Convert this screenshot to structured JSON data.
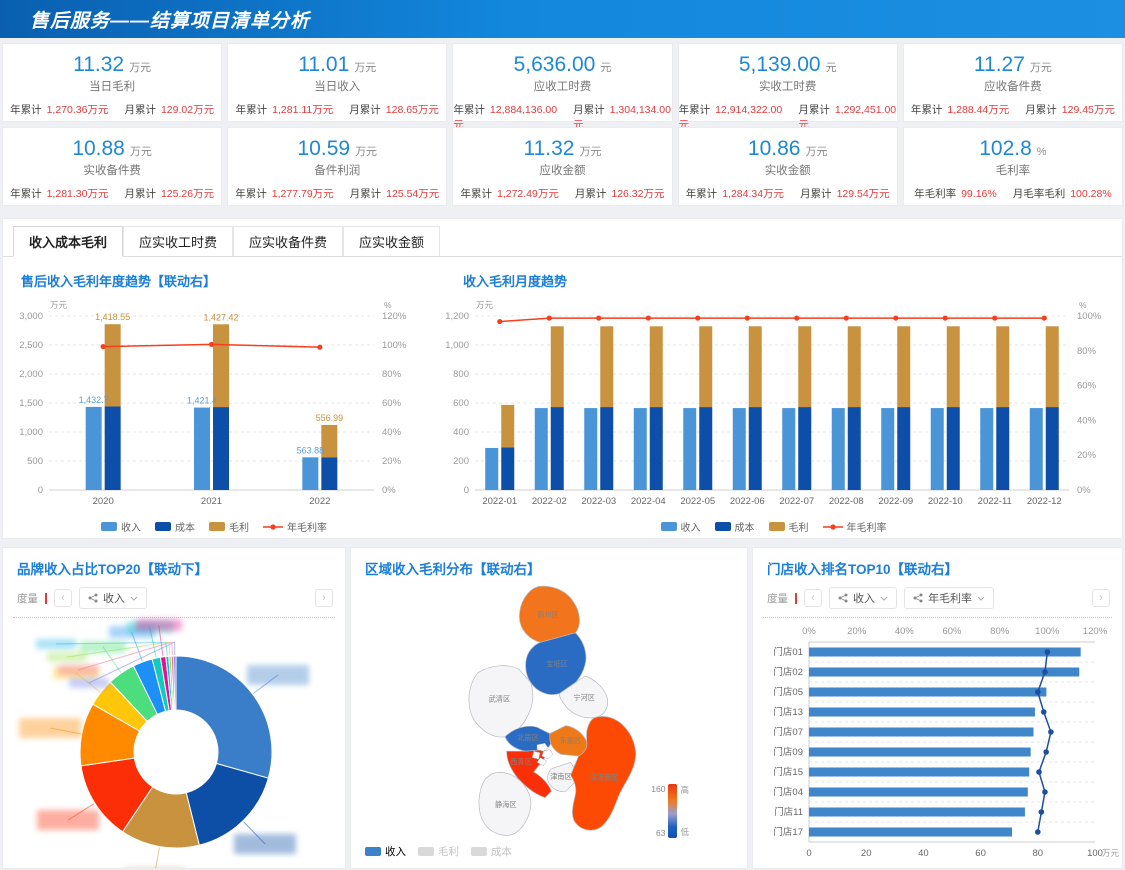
{
  "header": {
    "title": "售后服务——结算项目清单分析"
  },
  "kpis": [
    {
      "value": "11.32",
      "unit": "万元",
      "label": "当日毛利",
      "s1l": "年累计",
      "s1v": "1,270.36万元",
      "s2l": "月累计",
      "s2v": "129.02万元"
    },
    {
      "value": "11.01",
      "unit": "万元",
      "label": "当日收入",
      "s1l": "年累计",
      "s1v": "1,281.11万元",
      "s2l": "月累计",
      "s2v": "128.65万元"
    },
    {
      "value": "5,636.00",
      "unit": "元",
      "label": "应收工时费",
      "s1l": "年累计",
      "s1v": "12,884,136.00元",
      "s2l": "月累计",
      "s2v": "1,304,134.00元"
    },
    {
      "value": "5,139.00",
      "unit": "元",
      "label": "实收工时费",
      "s1l": "年累计",
      "s1v": "12,914,322.00元",
      "s2l": "月累计",
      "s2v": "1,292,451.00元"
    },
    {
      "value": "11.27",
      "unit": "万元",
      "label": "应收备件费",
      "s1l": "年累计",
      "s1v": "1,288.44万元",
      "s2l": "月累计",
      "s2v": "129.45万元"
    },
    {
      "value": "10.88",
      "unit": "万元",
      "label": "实收备件费",
      "s1l": "年累计",
      "s1v": "1,281.30万元",
      "s2l": "月累计",
      "s2v": "125.26万元"
    },
    {
      "value": "10.59",
      "unit": "万元",
      "label": "备件利润",
      "s1l": "年累计",
      "s1v": "1,277.79万元",
      "s2l": "月累计",
      "s2v": "125.54万元"
    },
    {
      "value": "11.32",
      "unit": "万元",
      "label": "应收金额",
      "s1l": "年累计",
      "s1v": "1,272.49万元",
      "s2l": "月累计",
      "s2v": "126.32万元"
    },
    {
      "value": "10.86",
      "unit": "万元",
      "label": "实收金额",
      "s1l": "年累计",
      "s1v": "1,284.34万元",
      "s2l": "月累计",
      "s2v": "129.54万元"
    },
    {
      "value": "102.8",
      "unit": "%",
      "label": "毛利率",
      "s1l": "年毛利率",
      "s1v": "99.16%",
      "s2l": "月毛率毛利",
      "s2v": "100.28%"
    }
  ],
  "tabs": {
    "items": [
      "收入成本毛利",
      "应实收工时费",
      "应实收备件费",
      "应实收金额"
    ],
    "active": 0
  },
  "yearly": {
    "title": "售后收入毛利年度趋势【联动右】"
  },
  "monthly": {
    "title": "收入毛利月度趋势"
  },
  "brand": {
    "title": "品牌收入占比TOP20【联动下】",
    "measure_label": "度量",
    "dropdowns": [
      "收入"
    ]
  },
  "region": {
    "title": "区域收入毛利分布【联动右】",
    "legend": [
      {
        "label": "收入",
        "color": "#3c82c8",
        "active": true
      },
      {
        "label": "毛利",
        "color": "#d9d9d9",
        "active": false
      },
      {
        "label": "成本",
        "color": "#d9d9d9",
        "active": false
      }
    ],
    "scale": {
      "max": "160",
      "min": "63",
      "high": "高",
      "low": "低"
    }
  },
  "store": {
    "title": "门店收入排名TOP10【联动右】",
    "measure_label": "度量",
    "dropdowns": [
      "收入",
      "年毛利率"
    ]
  },
  "chart_data": [
    {
      "id": "yearly_trend",
      "type": "bar+line",
      "title": "售后收入毛利年度趋势【联动右】",
      "unit_left": "万元",
      "unit_right": "%",
      "categories": [
        "2020",
        "2021",
        "2022"
      ],
      "series": [
        {
          "name": "收入",
          "color": "#4a94d8",
          "values": [
            1432.7,
            1421.4,
            563.88
          ]
        },
        {
          "name": "成本",
          "color": "#0d4fa8",
          "values": [
            1440,
            1430,
            565
          ]
        },
        {
          "name": "毛利",
          "color": "#c8923f",
          "values": [
            1418.55,
            1427.42,
            556.99
          ],
          "stacked_on": "成本"
        }
      ],
      "line": {
        "name": "年毛利率",
        "color": "#f53f1e",
        "values": [
          98.9,
          100.4,
          98.5
        ]
      },
      "bar_labels": {
        "income": [
          "1,432.7",
          "1,421.4",
          "563.88"
        ],
        "gross": [
          "1,418.55",
          "1,427.42",
          "556.99"
        ]
      },
      "ylim_left": [
        0,
        3000
      ],
      "left_step": 500,
      "ylim_right": [
        0,
        120
      ],
      "right_step": 20,
      "legend": [
        {
          "label": "收入",
          "color": "#4a94d8"
        },
        {
          "label": "成本",
          "color": "#0d4fa8"
        },
        {
          "label": "毛利",
          "color": "#c8923f"
        },
        {
          "label": "年毛利率",
          "color": "#f53f1e",
          "type": "line"
        }
      ]
    },
    {
      "id": "monthly_trend",
      "type": "bar+line",
      "title": "收入毛利月度趋势",
      "unit_left": "万元",
      "unit_right": "%",
      "categories": [
        "2022-01",
        "2022-02",
        "2022-03",
        "2022-04",
        "2022-05",
        "2022-06",
        "2022-07",
        "2022-08",
        "2022-09",
        "2022-10",
        "2022-11",
        "2022-12"
      ],
      "series": [
        {
          "name": "收入",
          "color": "#4a94d8",
          "values": [
            290,
            565,
            565,
            565,
            565,
            565,
            565,
            565,
            565,
            565,
            565,
            565
          ]
        },
        {
          "name": "成本",
          "color": "#0d4fa8",
          "values": [
            293,
            572,
            572,
            572,
            572,
            572,
            572,
            572,
            572,
            572,
            572,
            572
          ]
        },
        {
          "name": "毛利",
          "color": "#c8923f",
          "values": [
            294,
            557,
            557,
            557,
            557,
            557,
            557,
            557,
            557,
            557,
            557,
            557
          ],
          "stacked_on": "成本"
        }
      ],
      "line": {
        "name": "年毛利率",
        "color": "#f53f1e",
        "values": [
          96.8,
          98.8,
          98.8,
          98.8,
          98.8,
          98.8,
          98.8,
          98.8,
          98.8,
          98.8,
          98.8,
          98.8
        ]
      },
      "ylim_left": [
        0,
        1200
      ],
      "left_step": 200,
      "ylim_right": [
        0,
        100
      ],
      "right_step": 20,
      "legend": [
        {
          "label": "收入",
          "color": "#4a94d8"
        },
        {
          "label": "成本",
          "color": "#0d4fa8"
        },
        {
          "label": "毛利",
          "color": "#c8923f"
        },
        {
          "label": "年毛利率",
          "color": "#f53f1e",
          "type": "line"
        }
      ]
    },
    {
      "id": "brand_donut",
      "type": "pie",
      "title": "品牌收入占比TOP20【联动下】",
      "labels_redacted": true,
      "segments": [
        {
          "color": "#3a7dc8",
          "pct": 29.4
        },
        {
          "color": "#0d4ea6",
          "pct": 16.7
        },
        {
          "color": "#c8923f",
          "pct": 13.3
        },
        {
          "color": "#fb2e08",
          "pct": 13.3
        },
        {
          "color": "#ff8a00",
          "pct": 10.6
        },
        {
          "color": "#ffc60a",
          "pct": 4.7
        },
        {
          "color": "#4cdd7d",
          "pct": 4.7
        },
        {
          "color": "#1e8ff5",
          "pct": 3.3
        },
        {
          "color": "#14c9c0",
          "pct": 1.4
        },
        {
          "color": "#e0138e",
          "pct": 0.9
        },
        {
          "color": "#22b3e8",
          "pct": 0.5
        },
        {
          "color": "#9be04a",
          "pct": 0.4
        },
        {
          "color": "#f2689a",
          "pct": 0.4
        },
        {
          "color": "#6a7df0",
          "pct": 0.4
        }
      ]
    },
    {
      "id": "region_map",
      "type": "heatmap",
      "title": "区域收入毛利分布【联动右】",
      "scale": {
        "max": 160,
        "min": 63
      },
      "districts": [
        {
          "name": "蓟州区",
          "fill": "#f2751d"
        },
        {
          "name": "宝坻区",
          "fill": "#2a6cc3"
        },
        {
          "name": "武清区",
          "fill": "#f5f5f7"
        },
        {
          "name": "宁河区",
          "fill": "#f5f5f7"
        },
        {
          "name": "北辰区",
          "fill": "#2a6cc3"
        },
        {
          "name": "东丽区",
          "fill": "#ef7918"
        },
        {
          "name": "西青区",
          "fill": "#fb2e08"
        },
        {
          "name": "津南区",
          "fill": "#f5f5f7"
        },
        {
          "name": "滨海新区",
          "fill": "#fc4a05"
        },
        {
          "name": "静海区",
          "fill": "#f5f5f7"
        }
      ]
    },
    {
      "id": "store_ranking",
      "type": "bar+line",
      "orientation": "horizontal",
      "title": "门店收入排名TOP10【联动右】",
      "categories": [
        "门店01",
        "门店02",
        "门店05",
        "门店13",
        "门店07",
        "门店09",
        "门店15",
        "门店04",
        "门店11",
        "门店17"
      ],
      "bars": {
        "name": "收入",
        "color": "#3f86ca",
        "unit": "万元",
        "values": [
          95,
          94.5,
          83,
          79,
          78.5,
          77.5,
          77,
          76.5,
          75.5,
          71
        ]
      },
      "line": {
        "name": "年毛利率",
        "color": "#1d4f9e",
        "unit": "%",
        "values": [
          100,
          99,
          96,
          98.5,
          101.5,
          99.5,
          96.5,
          99,
          97.5,
          96
        ]
      },
      "xlim_bottom": [
        0,
        100
      ],
      "bottom_step": 20,
      "xlim_top": [
        0,
        120
      ],
      "top_step": 20,
      "legend": [
        {
          "label": "收入",
          "color": "#3f86ca"
        },
        {
          "label": "年毛利率",
          "color": "#1d4f9e",
          "type": "line"
        }
      ]
    }
  ]
}
